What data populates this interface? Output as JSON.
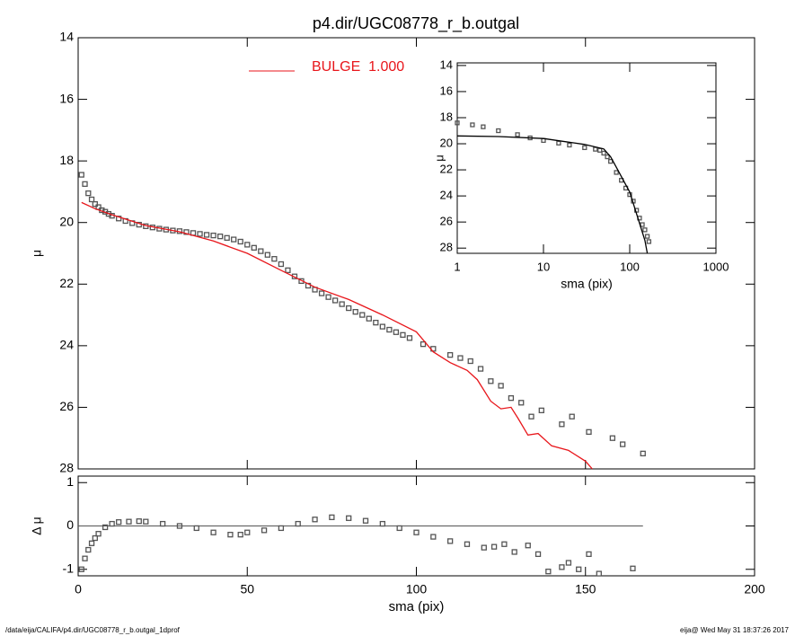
{
  "chart_data": [
    {
      "type": "scatter",
      "title": "p4.dir/UGC08778_r_b.outgal",
      "ylabel": "μ",
      "xlim": [
        0,
        200
      ],
      "xticks": [
        0,
        50,
        100,
        150,
        200
      ],
      "ylim": [
        14,
        28
      ],
      "yticks": [
        14,
        16,
        18,
        20,
        22,
        24,
        26,
        28
      ],
      "y_inverted": true,
      "grid": false,
      "legend": "top-left",
      "series": [
        {
          "mode": "markers",
          "color": "#555555",
          "x": [
            1,
            2,
            3,
            4,
            5,
            6,
            7,
            8,
            9,
            10,
            12,
            14,
            16,
            18,
            20,
            22,
            24,
            26,
            28,
            30,
            32,
            34,
            36,
            38,
            40,
            42,
            44,
            46,
            48,
            50,
            52,
            54,
            56,
            58,
            60,
            62,
            64,
            66,
            68,
            70,
            72,
            74,
            76,
            78,
            80,
            82,
            84,
            86,
            88,
            90,
            92,
            94,
            96,
            98,
            102,
            105,
            110,
            113,
            116,
            119,
            122,
            125,
            128,
            131,
            134,
            137,
            143,
            146,
            151,
            158,
            161,
            167
          ],
          "values": [
            18.45,
            18.75,
            19.05,
            19.25,
            19.4,
            19.5,
            19.6,
            19.65,
            19.72,
            19.78,
            19.87,
            19.95,
            20.02,
            20.07,
            20.12,
            20.16,
            20.2,
            20.23,
            20.26,
            20.28,
            20.31,
            20.34,
            20.37,
            20.4,
            20.42,
            20.45,
            20.5,
            20.55,
            20.62,
            20.72,
            20.82,
            20.93,
            21.05,
            21.18,
            21.35,
            21.55,
            21.75,
            21.9,
            22.05,
            22.18,
            22.3,
            22.42,
            22.53,
            22.65,
            22.78,
            22.9,
            23.0,
            23.12,
            23.25,
            23.38,
            23.48,
            23.56,
            23.65,
            23.75,
            23.95,
            24.1,
            24.3,
            24.4,
            24.5,
            24.75,
            25.15,
            25.3,
            25.7,
            25.85,
            26.3,
            26.1,
            26.55,
            26.3,
            26.8,
            27.0,
            27.2,
            27.5
          ]
        },
        {
          "mode": "line",
          "name": "BULGE  1.000",
          "color": "#e8161b",
          "x": [
            1,
            5,
            10,
            20,
            30,
            40,
            50,
            60,
            70,
            80,
            90,
            100,
            105,
            110,
            115,
            118,
            122,
            125,
            128,
            130,
            133,
            136,
            140,
            145,
            150,
            152
          ],
          "values": [
            19.35,
            19.55,
            19.75,
            20.1,
            20.3,
            20.6,
            21.0,
            21.55,
            22.1,
            22.5,
            23.0,
            23.55,
            24.2,
            24.55,
            24.8,
            25.1,
            25.8,
            26.05,
            26.0,
            26.35,
            26.9,
            26.85,
            27.25,
            27.4,
            27.75,
            28.0
          ]
        }
      ]
    },
    {
      "type": "scatter",
      "ylabel": "Δ μ",
      "xlabel": "sma (pix)",
      "xlim": [
        0,
        200
      ],
      "xticks": [
        0,
        50,
        100,
        150,
        200
      ],
      "ylim": [
        -1.15,
        1.15
      ],
      "yticks": [
        -1,
        0,
        1
      ],
      "y_inverted": false,
      "grid": false,
      "reference_line": {
        "y": 0,
        "x": [
          0,
          167
        ]
      },
      "series": [
        {
          "mode": "markers",
          "color": "#555555",
          "x": [
            1,
            2,
            3,
            4,
            5,
            6,
            8,
            10,
            12,
            15,
            18,
            20,
            25,
            30,
            35,
            40,
            45,
            48,
            50,
            55,
            60,
            65,
            70,
            75,
            80,
            85,
            90,
            95,
            100,
            105,
            110,
            115,
            120,
            123,
            126,
            129,
            133,
            136,
            139,
            143,
            145,
            148,
            151,
            154,
            164
          ],
          "values": [
            -1.0,
            -0.75,
            -0.55,
            -0.4,
            -0.28,
            -0.18,
            -0.03,
            0.05,
            0.09,
            0.1,
            0.11,
            0.1,
            0.05,
            0.0,
            -0.05,
            -0.15,
            -0.2,
            -0.2,
            -0.15,
            -0.1,
            -0.05,
            0.05,
            0.15,
            0.2,
            0.18,
            0.12,
            0.05,
            -0.05,
            -0.15,
            -0.25,
            -0.35,
            -0.42,
            -0.5,
            -0.48,
            -0.42,
            -0.6,
            -0.45,
            -0.65,
            -1.05,
            -0.95,
            -0.85,
            -1.0,
            -0.65,
            -1.1,
            -0.98
          ]
        }
      ]
    },
    {
      "type": "scatter",
      "ylabel": "μ",
      "xlabel": "sma (pix)",
      "xscale": "log",
      "xlim": [
        1,
        1000
      ],
      "xticks": [
        1,
        10,
        100,
        1000
      ],
      "ylim": [
        13.8,
        28.4
      ],
      "yticks": [
        14,
        16,
        18,
        20,
        22,
        24,
        26,
        28
      ],
      "y_inverted": true,
      "grid": false,
      "series": [
        {
          "mode": "markers",
          "color": "#555555",
          "x": [
            1,
            1.5,
            2,
            3,
            5,
            7,
            10,
            15,
            20,
            30,
            40,
            45,
            50,
            55,
            60,
            70,
            80,
            90,
            100,
            110,
            120,
            130,
            140,
            150,
            160,
            167
          ],
          "values": [
            18.4,
            18.55,
            18.7,
            19.0,
            19.3,
            19.55,
            19.75,
            19.95,
            20.1,
            20.3,
            20.42,
            20.5,
            20.72,
            21.0,
            21.35,
            22.2,
            22.8,
            23.4,
            23.9,
            24.4,
            25.1,
            25.7,
            26.2,
            26.6,
            27.1,
            27.5
          ]
        },
        {
          "mode": "line",
          "color": "#000000",
          "x": [
            1,
            3,
            10,
            30,
            50,
            60,
            70,
            100,
            150,
            160
          ],
          "values": [
            19.4,
            19.45,
            19.6,
            20.05,
            20.4,
            21.0,
            21.8,
            23.7,
            27.4,
            28.4
          ]
        }
      ]
    }
  ],
  "footer": {
    "left": "/data/eija/CALIFA/p4.dir/UGC08778_r_b.outgal_1dprof",
    "right": "eija@  Wed May 31 18:37:26 2017"
  }
}
